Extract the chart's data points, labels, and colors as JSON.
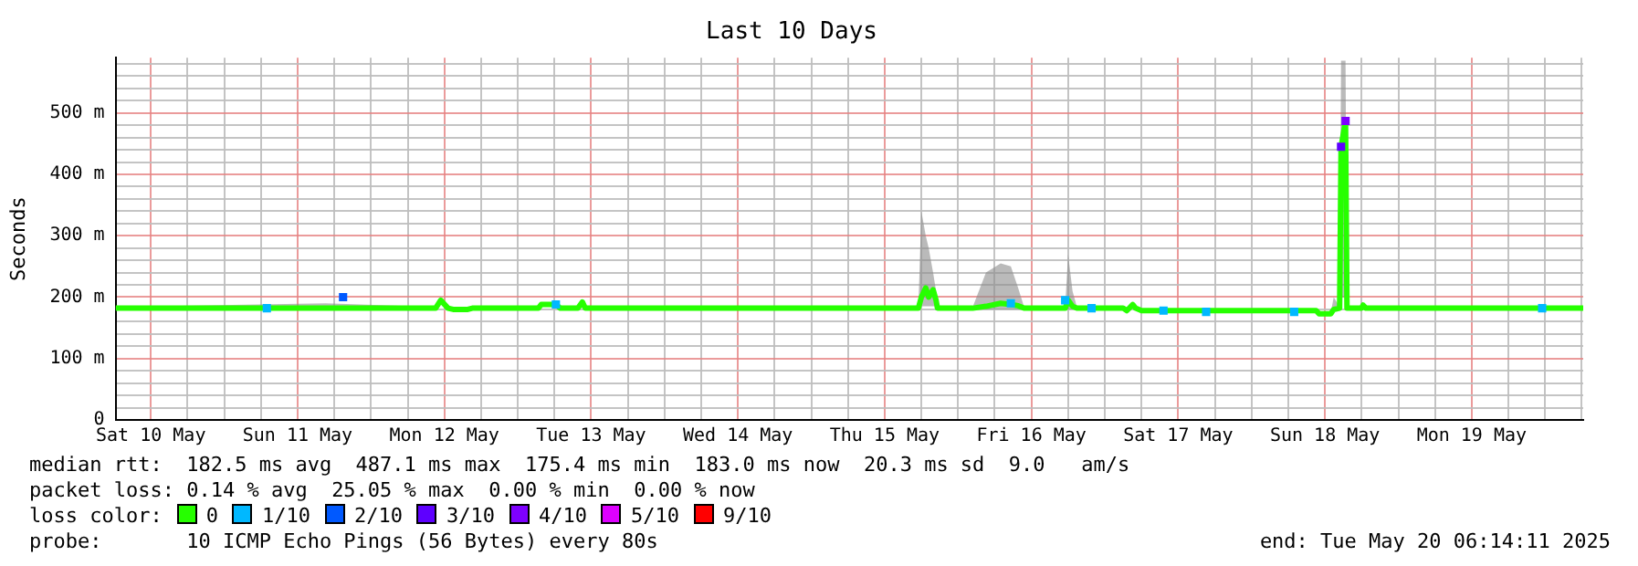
{
  "chart_data": {
    "type": "line",
    "title": "Last 10 Days",
    "ylabel": "Seconds",
    "legend_title": "loss color:",
    "legend": "bottom left",
    "grid": true,
    "marker": "square",
    "xlim": [
      "2025-05-10T06:14",
      "2025-05-20T06:14"
    ],
    "ylim": [
      0,
      590
    ],
    "xticks": [
      {
        "value": "2025-05-10T12:00",
        "label": "Sat 10 May"
      },
      {
        "value": "2025-05-10T18:00",
        "label": null
      },
      {
        "value": "2025-05-11T00:00",
        "label": null
      },
      {
        "value": "2025-05-11T06:00",
        "label": null
      },
      {
        "value": "2025-05-11T12:00",
        "label": "Sun 11 May"
      },
      {
        "value": "2025-05-11T18:00",
        "label": null
      },
      {
        "value": "2025-05-12T00:00",
        "label": null
      },
      {
        "value": "2025-05-12T06:00",
        "label": null
      },
      {
        "value": "2025-05-12T12:00",
        "label": "Mon 12 May"
      },
      {
        "value": "2025-05-12T18:00",
        "label": null
      },
      {
        "value": "2025-05-13T00:00",
        "label": null
      },
      {
        "value": "2025-05-13T06:00",
        "label": null
      },
      {
        "value": "2025-05-13T12:00",
        "label": "Tue 13 May"
      },
      {
        "value": "2025-05-13T18:00",
        "label": null
      },
      {
        "value": "2025-05-14T00:00",
        "label": null
      },
      {
        "value": "2025-05-14T06:00",
        "label": null
      },
      {
        "value": "2025-05-14T12:00",
        "label": "Wed 14 May"
      },
      {
        "value": "2025-05-14T18:00",
        "label": null
      },
      {
        "value": "2025-05-15T00:00",
        "label": null
      },
      {
        "value": "2025-05-15T06:00",
        "label": null
      },
      {
        "value": "2025-05-15T12:00",
        "label": "Thu 15 May"
      },
      {
        "value": "2025-05-15T18:00",
        "label": null
      },
      {
        "value": "2025-05-16T00:00",
        "label": null
      },
      {
        "value": "2025-05-16T06:00",
        "label": null
      },
      {
        "value": "2025-05-16T12:00",
        "label": "Fri 16 May"
      },
      {
        "value": "2025-05-16T18:00",
        "label": null
      },
      {
        "value": "2025-05-17T00:00",
        "label": null
      },
      {
        "value": "2025-05-17T06:00",
        "label": null
      },
      {
        "value": "2025-05-17T12:00",
        "label": "Sat 17 May"
      },
      {
        "value": "2025-05-17T18:00",
        "label": null
      },
      {
        "value": "2025-05-18T00:00",
        "label": null
      },
      {
        "value": "2025-05-18T06:00",
        "label": null
      },
      {
        "value": "2025-05-18T12:00",
        "label": "Sun 18 May"
      },
      {
        "value": "2025-05-18T18:00",
        "label": null
      },
      {
        "value": "2025-05-19T00:00",
        "label": null
      },
      {
        "value": "2025-05-19T06:00",
        "label": null
      },
      {
        "value": "2025-05-19T12:00",
        "label": "Mon 19 May"
      },
      {
        "value": "2025-05-19T18:00",
        "label": null
      },
      {
        "value": "2025-05-20T00:00",
        "label": null
      },
      {
        "value": "2025-05-20T06:00",
        "label": null
      }
    ],
    "yticks": [
      0,
      {
        "value": 20,
        "label": null
      },
      {
        "value": 40,
        "label": null
      },
      {
        "value": 60,
        "label": null
      },
      {
        "value": 80,
        "label": null
      },
      {
        "value": 100,
        "label": "100 m"
      },
      {
        "value": 120,
        "label": null
      },
      {
        "value": 140,
        "label": null
      },
      {
        "value": 160,
        "label": null
      },
      {
        "value": 180,
        "label": null
      },
      {
        "value": 200,
        "label": "200 m"
      },
      {
        "value": 220,
        "label": null
      },
      {
        "value": 240,
        "label": null
      },
      {
        "value": 260,
        "label": null
      },
      {
        "value": 280,
        "label": null
      },
      {
        "value": 300,
        "label": "300 m"
      },
      {
        "value": 320,
        "label": null
      },
      {
        "value": 340,
        "label": null
      },
      {
        "value": 360,
        "label": null
      },
      {
        "value": 380,
        "label": null
      },
      {
        "value": 400,
        "label": "400 m"
      },
      {
        "value": 420,
        "label": null
      },
      {
        "value": 440,
        "label": null
      },
      {
        "value": 460,
        "label": null
      },
      {
        "value": 480,
        "label": null
      },
      {
        "value": 500,
        "label": "500 m"
      },
      {
        "value": 520,
        "label": null
      },
      {
        "value": 540,
        "label": null
      },
      {
        "value": 560,
        "label": null
      },
      {
        "value": 580,
        "label": null
      }
    ],
    "series": [
      {
        "name": "0",
        "color": "#26ff00",
        "marker": "none",
        "x": [
          "2025-05-10T06:14",
          "2025-05-11T16:34",
          "2025-05-12T10:34",
          "2025-05-12T11:24",
          "2025-05-12T12:36",
          "2025-05-12T13:26",
          "2025-05-12T15:50",
          "2025-05-12T16:34",
          "2025-05-13T03:22",
          "2025-05-13T03:50",
          "2025-05-13T06:14",
          "2025-05-13T06:58",
          "2025-05-13T09:50",
          "2025-05-13T10:34",
          "2025-05-13T11:02",
          "2025-05-15T17:31",
          "2025-05-15T18:00",
          "2025-05-15T18:43",
          "2025-05-15T19:12",
          "2025-05-15T19:55",
          "2025-05-15T20:24",
          "2025-05-15T20:38",
          "2025-05-16T02:24",
          "2025-05-16T04:34",
          "2025-05-16T06:58",
          "2025-05-16T08:38",
          "2025-05-16T09:50",
          "2025-05-16T10:48",
          "2025-05-16T17:31",
          "2025-05-16T18:00",
          "2025-05-16T18:43",
          "2025-05-16T19:26",
          "2025-05-17T03:00",
          "2025-05-17T03:36",
          "2025-05-17T04:34",
          "2025-05-17T05:02",
          "2025-05-17T06:00",
          "2025-05-17T22:34",
          "2025-05-18T10:34",
          "2025-05-18T11:02",
          "2025-05-18T12:58",
          "2025-05-18T13:26",
          "2025-05-18T14:24",
          "2025-05-18T14:38",
          "2025-05-18T15:22",
          "2025-05-18T15:36",
          "2025-05-18T18:00",
          "2025-05-18T18:14",
          "2025-05-18T18:43",
          "2025-05-20T06:14"
        ],
        "values": [
          182,
          182,
          182,
          195,
          182,
          180,
          180,
          182,
          182,
          188,
          188,
          182,
          182,
          192,
          182,
          182,
          200,
          215,
          200,
          212,
          195,
          182,
          182,
          185,
          190,
          188,
          186,
          182,
          182,
          195,
          185,
          182,
          182,
          178,
          188,
          182,
          178,
          178,
          178,
          173,
          173,
          180,
          182,
          445,
          487,
          182,
          182,
          187,
          182,
          182
        ],
        "lower": [
          180,
          180,
          180,
          190,
          180,
          178,
          178,
          180,
          180,
          185,
          185,
          180,
          180,
          188,
          180,
          180,
          185,
          185,
          185,
          185,
          185,
          180,
          180,
          180,
          180,
          180,
          180,
          180,
          180,
          180,
          180,
          180,
          180,
          176,
          185,
          180,
          176,
          176,
          176,
          171,
          171,
          178,
          180,
          200,
          200,
          180,
          180,
          185,
          180,
          180
        ],
        "upper": [
          184,
          190,
          184,
          198,
          184,
          182,
          182,
          184,
          184,
          190,
          190,
          184,
          184,
          195,
          184,
          184,
          340,
          300,
          280,
          240,
          210,
          184,
          184,
          240,
          255,
          250,
          215,
          184,
          184,
          270,
          210,
          184,
          184,
          180,
          190,
          184,
          180,
          180,
          180,
          176,
          176,
          200,
          184,
          585,
          585,
          184,
          184,
          190,
          184,
          184
        ]
      },
      {
        "name": "1/10",
        "color": "#00b8ff",
        "type": "scatter",
        "x": [
          "2025-05-11T06:58",
          "2025-05-13T06:14",
          "2025-05-16T08:38",
          "2025-05-16T17:31",
          "2025-05-16T21:50",
          "2025-05-17T09:36",
          "2025-05-17T16:34",
          "2025-05-18T06:58",
          "2025-05-19T23:31"
        ],
        "values": [
          182,
          188,
          190,
          195,
          182,
          178,
          176,
          176,
          182
        ]
      },
      {
        "name": "2/10",
        "color": "#0059ff",
        "type": "scatter",
        "x": [
          "2025-05-11T19:26"
        ],
        "values": [
          200
        ]
      },
      {
        "name": "3/10",
        "color": "#5e00ff",
        "type": "scatter",
        "x": [
          "2025-05-18T14:38"
        ],
        "values": [
          445
        ]
      },
      {
        "name": "4/10",
        "color": "#7e00ff",
        "type": "scatter",
        "x": [
          "2025-05-18T15:22"
        ],
        "values": [
          487
        ]
      },
      {
        "name": "5/10",
        "color": "#dd00ff",
        "type": "scatter"
      },
      {
        "name": "9/10",
        "color": "#ff0000",
        "type": "scatter"
      }
    ],
    "annotations": [
      "median rtt:  182.5 ms avg  487.1 ms max  175.4 ms min  183.0 ms now  20.3 ms sd  9.0   am/s",
      "packet loss: 0.14 % avg  25.05 % max  0.00 % min  0.00 % now",
      "probe:       10 ICMP Echo Pings (56 Bytes) every 80s",
      "end: Tue May 20 06:14:11 2025"
    ]
  }
}
